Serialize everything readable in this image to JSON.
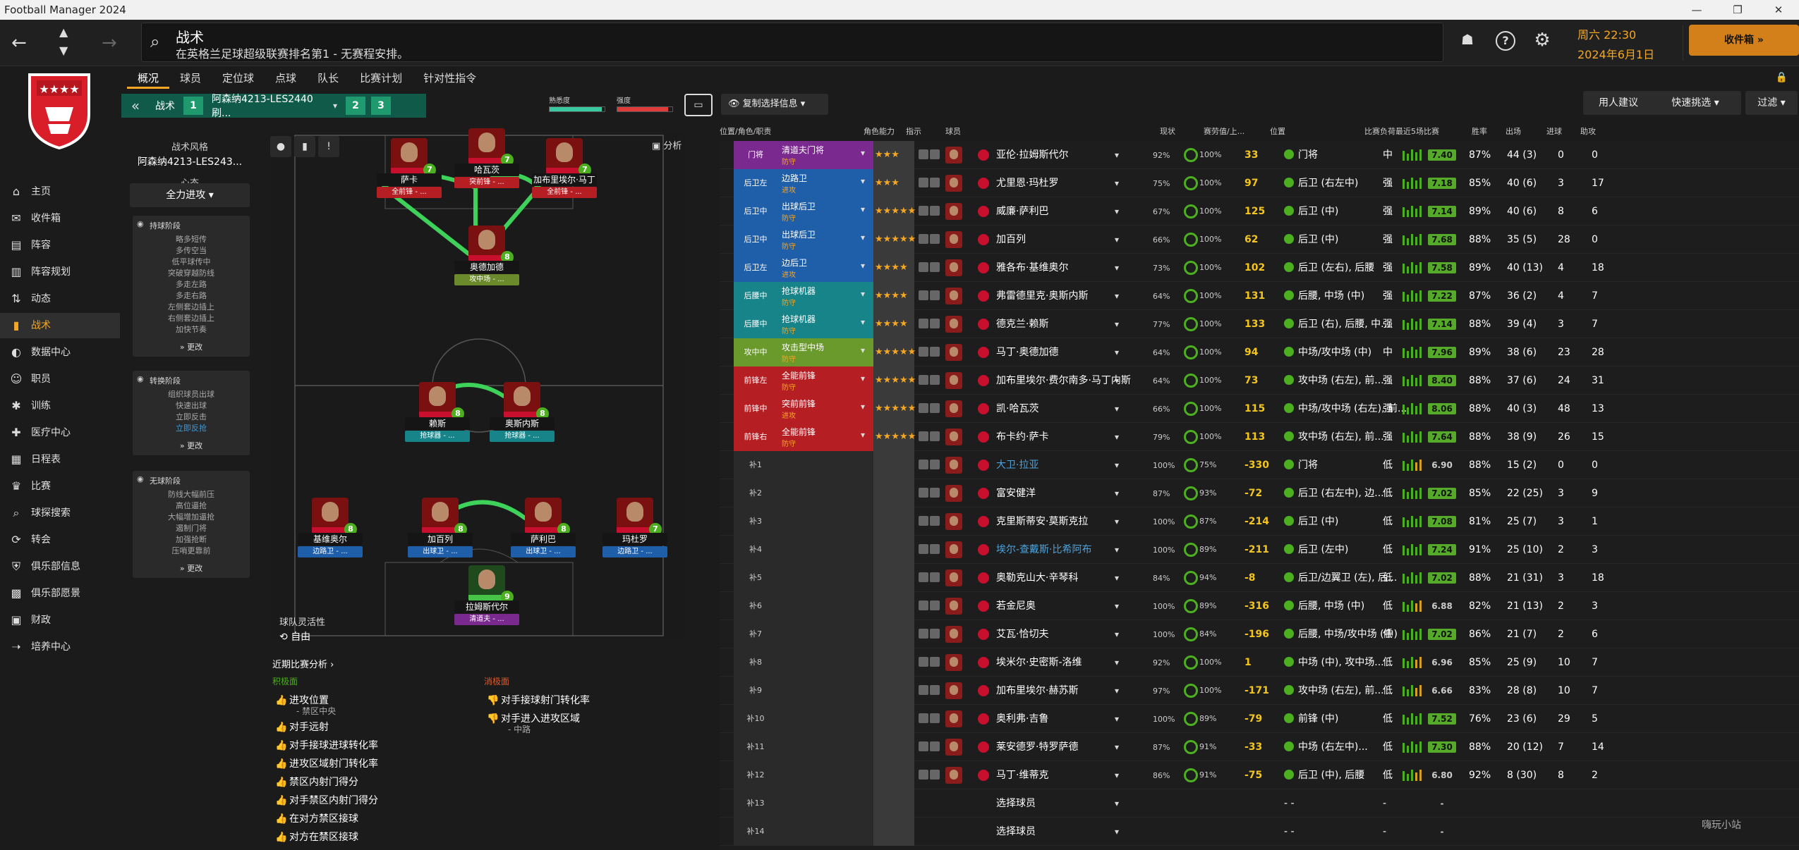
{
  "window": {
    "title": "Football Manager 2024"
  },
  "header": {
    "title": "战术",
    "subtitle": "在英格兰足球超级联赛排名第1 - 无赛程安排。",
    "date_line1": "周六 22:30",
    "date_line2": "2024年6月1日",
    "continue_label": "收件箱 »",
    "icons": [
      "back-icon",
      "forward-icon",
      "search-icon",
      "brain-icon",
      "help-icon",
      "gear-icon"
    ]
  },
  "sidebar": {
    "items": [
      {
        "label": "主页",
        "icon": "home-icon"
      },
      {
        "label": "收件箱",
        "icon": "inbox-icon"
      },
      {
        "label": "阵容",
        "icon": "squad-icon"
      },
      {
        "label": "阵容规划",
        "icon": "clipboard-icon"
      },
      {
        "label": "动态",
        "icon": "dynamics-icon"
      },
      {
        "label": "战术",
        "icon": "tactics-icon",
        "active": true
      },
      {
        "label": "数据中心",
        "icon": "data-icon"
      },
      {
        "label": "职员",
        "icon": "staff-icon"
      },
      {
        "label": "训练",
        "icon": "training-icon"
      },
      {
        "label": "医疗中心",
        "icon": "medical-icon"
      },
      {
        "label": "日程表",
        "icon": "calendar-icon"
      },
      {
        "label": "比赛",
        "icon": "trophy-icon"
      },
      {
        "label": "球探搜索",
        "icon": "scout-icon"
      },
      {
        "label": "转会",
        "icon": "transfer-icon"
      },
      {
        "label": "俱乐部信息",
        "icon": "club-icon"
      },
      {
        "label": "俱乐部愿景",
        "icon": "vision-icon"
      },
      {
        "label": "财政",
        "icon": "finance-icon"
      },
      {
        "label": "培养中心",
        "icon": "development-icon"
      }
    ]
  },
  "tabs": [
    "概况",
    "球员",
    "定位球",
    "点球",
    "队长",
    "比赛计划",
    "针对性指令"
  ],
  "formation_bar": {
    "label": "战术",
    "slot1": "1",
    "name": "阿森纳4213-LES2440刷...",
    "slot2": "2",
    "slot3": "3"
  },
  "meters": {
    "familiarity_label": "熟悉度",
    "intensity_label": "强度",
    "familiarity": 0.95,
    "intensity": 0.92
  },
  "copy_button": "复制选择信息",
  "right_buttons": {
    "suggest": "用人建议",
    "quick": "快速挑选",
    "filter": "过滤"
  },
  "tactic_panel": {
    "style_label": "战术风格",
    "style_value": "阿森纳4213-LES243...",
    "mentality_label": "心态",
    "mentality_value": "全力进攻",
    "more_label": "更改"
  },
  "phases": [
    {
      "title": "持球阶段",
      "items": [
        "略多短传",
        "多传空当",
        "低平球传中",
        "突破穿越防线",
        "多走左路",
        "多走右路",
        "左侧套边插上",
        "右侧套边插上",
        "加快节奏"
      ]
    },
    {
      "title": "转换阶段",
      "items": [
        "组织球员出球",
        "快速出球",
        "立即反击",
        "立即反抢"
      ]
    },
    {
      "title": "无球阶段",
      "items": [
        "防线大幅前压",
        "高位逼抢",
        "大幅增加逼抢",
        "遏制门将",
        "加强抢断",
        "压哨更靠前"
      ]
    }
  ],
  "pitch": {
    "analysis_label": "分析",
    "flex_label": "球队灵活性",
    "flex_value": "自由",
    "players": [
      {
        "name": "萨卡",
        "role": "全前锋 - ...",
        "rating": "7",
        "rc": "r"
      },
      {
        "name": "哈瓦茨",
        "role": "突前锋 - ...",
        "rating": "7",
        "rc": "r"
      },
      {
        "name": "加布里埃尔·马丁内...",
        "role": "全前锋 - ...",
        "rating": "7",
        "rc": "r"
      },
      {
        "name": "奥德加德",
        "role": "攻中场 - ...",
        "rating": "8",
        "rc": "g"
      },
      {
        "name": "赖斯",
        "role": "抢球器 - ...",
        "rating": "8",
        "rc": "c"
      },
      {
        "name": "奥斯内斯",
        "role": "抢球器 - ...",
        "rating": "8",
        "rc": "c"
      },
      {
        "name": "基维奥尔",
        "role": "边路卫 - ...",
        "rating": "8",
        "rc": "b"
      },
      {
        "name": "加百列",
        "role": "出球卫 - ...",
        "rating": "8",
        "rc": "b"
      },
      {
        "name": "萨利巴",
        "role": "出球卫 - ...",
        "rating": "8",
        "rc": "b"
      },
      {
        "name": "玛杜罗",
        "role": "边路卫 - ...",
        "rating": "7",
        "rc": "b"
      },
      {
        "name": "拉姆斯代尔",
        "role": "清道夫 - ...",
        "rating": "9",
        "rc": "p"
      }
    ]
  },
  "analysis": {
    "title": "近期比赛分析 ›",
    "positive_label": "积极面",
    "negative_label": "消极面",
    "positives": [
      {
        "text": "进攻位置",
        "sub": "- 禁区中央"
      },
      {
        "text": "对手远射",
        "sub": ""
      },
      {
        "text": "对手接球进球转化率",
        "sub": ""
      },
      {
        "text": "进攻区域射门转化率",
        "sub": ""
      },
      {
        "text": "禁区内射门得分",
        "sub": ""
      },
      {
        "text": "对手禁区内射门得分",
        "sub": ""
      },
      {
        "text": "在对方禁区接球",
        "sub": ""
      },
      {
        "text": "对方在禁区接球",
        "sub": ""
      }
    ],
    "negatives": [
      {
        "text": "对手接球射门转化率",
        "sub": ""
      },
      {
        "text": "对手进入进攻区域",
        "sub": "- 中路"
      }
    ]
  },
  "table": {
    "headers": [
      "位置/角色/职责",
      "角色能力",
      "指示",
      "球员",
      "现状",
      "赛劳值/上...",
      "位置",
      "比赛负荷",
      "最近5场比赛",
      "胜率",
      "出场",
      "进球",
      "助攻"
    ],
    "rows": [
      {
        "pos": "门将",
        "pc": "#7a2a8f",
        "role": "清道夫门将",
        "duty": "防守",
        "stars": "★★★",
        "name": "亚伦·拉姆斯代尔",
        "fresh": "92%",
        "cond": "100%",
        "delta": "33",
        "ppos": "门将",
        "load": "中",
        "rating": "7.40",
        "win": "87%",
        "apps": "44 (3)",
        "goals": "0",
        "assists": "0"
      },
      {
        "pos": "后卫左",
        "pc": "#1f5ea8",
        "role": "边路卫",
        "duty": "进攻",
        "stars": "★★★",
        "name": "尤里恩·玛杜罗",
        "fresh": "75%",
        "cond": "100%",
        "delta": "97",
        "ppos": "后卫 (右左中)",
        "load": "强",
        "rating": "7.18",
        "win": "85%",
        "apps": "40 (6)",
        "goals": "3",
        "assists": "17"
      },
      {
        "pos": "后卫中",
        "pc": "#1f5ea8",
        "role": "出球后卫",
        "duty": "防守",
        "stars": "★★★★★",
        "name": "威廉·萨利巴",
        "fresh": "67%",
        "cond": "100%",
        "delta": "125",
        "ppos": "后卫 (中)",
        "load": "强",
        "rating": "7.14",
        "win": "89%",
        "apps": "40 (6)",
        "goals": "8",
        "assists": "6"
      },
      {
        "pos": "后卫中",
        "pc": "#1f5ea8",
        "role": "出球后卫",
        "duty": "防守",
        "stars": "★★★★★",
        "name": "加百列",
        "fresh": "66%",
        "cond": "100%",
        "delta": "62",
        "ppos": "后卫 (中)",
        "load": "强",
        "rating": "7.68",
        "win": "88%",
        "apps": "35 (5)",
        "goals": "28",
        "assists": "0"
      },
      {
        "pos": "后卫左",
        "pc": "#1f5ea8",
        "role": "边后卫",
        "duty": "进攻",
        "stars": "★★★★",
        "name": "雅各布·基维奥尔",
        "fresh": "73%",
        "cond": "100%",
        "delta": "102",
        "ppos": "后卫 (左右), 后腰",
        "load": "强",
        "rating": "7.58",
        "win": "89%",
        "apps": "40 (13)",
        "goals": "4",
        "assists": "18"
      },
      {
        "pos": "后腰中",
        "pc": "#17848a",
        "role": "抢球机器",
        "duty": "防守",
        "stars": "★★★★",
        "name": "弗雷德里克·奥斯内斯",
        "fresh": "64%",
        "cond": "100%",
        "delta": "131",
        "ppos": "后腰, 中场 (中)",
        "load": "强",
        "rating": "7.22",
        "win": "87%",
        "apps": "36 (2)",
        "goals": "4",
        "assists": "7"
      },
      {
        "pos": "后腰中",
        "pc": "#17848a",
        "role": "抢球机器",
        "duty": "防守",
        "stars": "★★★★",
        "name": "德克兰·赖斯",
        "fresh": "77%",
        "cond": "100%",
        "delta": "133",
        "ppos": "后卫 (右), 后腰, 中...",
        "load": "强",
        "rating": "7.14",
        "win": "88%",
        "apps": "39 (4)",
        "goals": "3",
        "assists": "7"
      },
      {
        "pos": "攻中中",
        "pc": "#6b9a2c",
        "role": "攻击型中场",
        "duty": "防守",
        "stars": "★★★★★",
        "name": "马丁·奥德加德",
        "fresh": "64%",
        "cond": "100%",
        "delta": "94",
        "ppos": "中场/攻中场 (中)",
        "load": "中",
        "rating": "7.96",
        "win": "89%",
        "apps": "38 (6)",
        "goals": "23",
        "assists": "28"
      },
      {
        "pos": "前锋左",
        "pc": "#b51f24",
        "role": "全能前锋",
        "duty": "防守",
        "stars": "★★★★★",
        "name": "加布里埃尔·费尔南多·马丁内斯",
        "fresh": "64%",
        "cond": "100%",
        "delta": "73",
        "ppos": "攻中场 (右左), 前...",
        "load": "强",
        "rating": "8.40",
        "win": "88%",
        "apps": "37 (6)",
        "goals": "24",
        "assists": "31"
      },
      {
        "pos": "前锋中",
        "pc": "#b51f24",
        "role": "突前前锋",
        "duty": "进攻",
        "stars": "★★★★★",
        "name": "凯·哈瓦茨",
        "fresh": "66%",
        "cond": "100%",
        "delta": "115",
        "ppos": "中场/攻中场 (右左), 前...",
        "load": "强",
        "rating": "8.06",
        "win": "88%",
        "apps": "40 (3)",
        "goals": "48",
        "assists": "13"
      },
      {
        "pos": "前锋右",
        "pc": "#b51f24",
        "role": "全能前锋",
        "duty": "防守",
        "stars": "★★★★★",
        "name": "布卡约·萨卡",
        "fresh": "79%",
        "cond": "100%",
        "delta": "113",
        "ppos": "攻中场 (右左), 前...",
        "load": "强",
        "rating": "7.64",
        "win": "88%",
        "apps": "38 (9)",
        "goals": "26",
        "assists": "15"
      },
      {
        "pos": "补1",
        "sub": true,
        "name": "大卫·拉亚",
        "blue": true,
        "fresh": "100%",
        "cond": "75%",
        "delta": "-330",
        "ppos": "门将",
        "load": "低",
        "rating": "6.90",
        "win": "88%",
        "apps": "15 (2)",
        "goals": "0",
        "assists": "0"
      },
      {
        "pos": "补2",
        "sub": true,
        "name": "富安健洋",
        "fresh": "87%",
        "cond": "93%",
        "delta": "-72",
        "ppos": "后卫 (右左中), 边...",
        "load": "低",
        "rating": "7.02",
        "win": "85%",
        "apps": "22 (25)",
        "goals": "3",
        "assists": "9"
      },
      {
        "pos": "补3",
        "sub": true,
        "name": "克里斯蒂安·莫斯克拉",
        "fresh": "100%",
        "cond": "87%",
        "delta": "-214",
        "ppos": "后卫 (中)",
        "load": "低",
        "rating": "7.08",
        "win": "81%",
        "apps": "25 (7)",
        "goals": "3",
        "assists": "1"
      },
      {
        "pos": "补4",
        "sub": true,
        "name": "埃尔-查戴斯·比希阿布",
        "blue": true,
        "fresh": "100%",
        "cond": "89%",
        "delta": "-211",
        "ppos": "后卫 (左中)",
        "load": "低",
        "rating": "7.24",
        "win": "91%",
        "apps": "25 (10)",
        "goals": "2",
        "assists": "3"
      },
      {
        "pos": "补5",
        "sub": true,
        "name": "奥勒克山大·辛琴科",
        "fresh": "84%",
        "cond": "94%",
        "delta": "-8",
        "ppos": "后卫/边翼卫 (左), 后...",
        "load": "低",
        "rating": "7.02",
        "win": "88%",
        "apps": "21 (31)",
        "goals": "3",
        "assists": "18"
      },
      {
        "pos": "补6",
        "sub": true,
        "name": "若金尼奥",
        "fresh": "100%",
        "cond": "89%",
        "delta": "-316",
        "ppos": "后腰, 中场 (中)",
        "load": "低",
        "rating": "6.88",
        "win": "82%",
        "apps": "21 (13)",
        "goals": "2",
        "assists": "3"
      },
      {
        "pos": "补7",
        "sub": true,
        "name": "艾瓦·恰切夫",
        "fresh": "100%",
        "cond": "84%",
        "delta": "-196",
        "ppos": "后腰, 中场/攻中场 (中)",
        "load": "低",
        "rating": "7.02",
        "win": "86%",
        "apps": "21 (7)",
        "goals": "2",
        "assists": "6"
      },
      {
        "pos": "补8",
        "sub": true,
        "name": "埃米尔·史密斯-洛维",
        "fresh": "92%",
        "cond": "100%",
        "delta": "1",
        "ppos": "中场 (中), 攻中场...",
        "load": "低",
        "rating": "6.96",
        "win": "85%",
        "apps": "25 (9)",
        "goals": "10",
        "assists": "7"
      },
      {
        "pos": "补9",
        "sub": true,
        "name": "加布里埃尔·赫苏斯",
        "fresh": "97%",
        "cond": "100%",
        "delta": "-171",
        "ppos": "攻中场 (右左), 前...",
        "load": "低",
        "rating": "6.66",
        "win": "83%",
        "apps": "28 (8)",
        "goals": "10",
        "assists": "7"
      },
      {
        "pos": "补10",
        "sub": true,
        "name": "奥利弗·吉鲁",
        "fresh": "100%",
        "cond": "89%",
        "delta": "-79",
        "ppos": "前锋 (中)",
        "load": "低",
        "rating": "7.52",
        "win": "76%",
        "apps": "23 (6)",
        "goals": "29",
        "assists": "5"
      },
      {
        "pos": "补11",
        "sub": true,
        "name": "莱安德罗·特罗萨德",
        "fresh": "87%",
        "cond": "91%",
        "delta": "-33",
        "ppos": "中场 (右左中)...",
        "load": "低",
        "rating": "7.30",
        "win": "88%",
        "apps": "20 (12)",
        "goals": "7",
        "assists": "14"
      },
      {
        "pos": "补12",
        "sub": true,
        "name": "马丁·维蒂克",
        "fresh": "86%",
        "cond": "91%",
        "delta": "-75",
        "ppos": "后卫 (中), 后腰",
        "load": "低",
        "rating": "6.80",
        "win": "92%",
        "apps": "8 (30)",
        "goals": "8",
        "assists": "2"
      },
      {
        "pos": "补13",
        "sub": true,
        "empty": true,
        "name": "选择球员",
        "fresh": "",
        "cond": "",
        "delta": "",
        "ppos": "- -",
        "load": "-",
        "rating": "-",
        "win": "",
        "apps": "",
        "goals": "",
        "assists": ""
      },
      {
        "pos": "补14",
        "sub": true,
        "empty": true,
        "name": "选择球员",
        "fresh": "",
        "cond": "",
        "delta": "",
        "ppos": "- -",
        "load": "-",
        "rating": "-",
        "win": "",
        "apps": "",
        "goals": "",
        "assists": ""
      }
    ]
  },
  "watermark": "嗨玩小站"
}
